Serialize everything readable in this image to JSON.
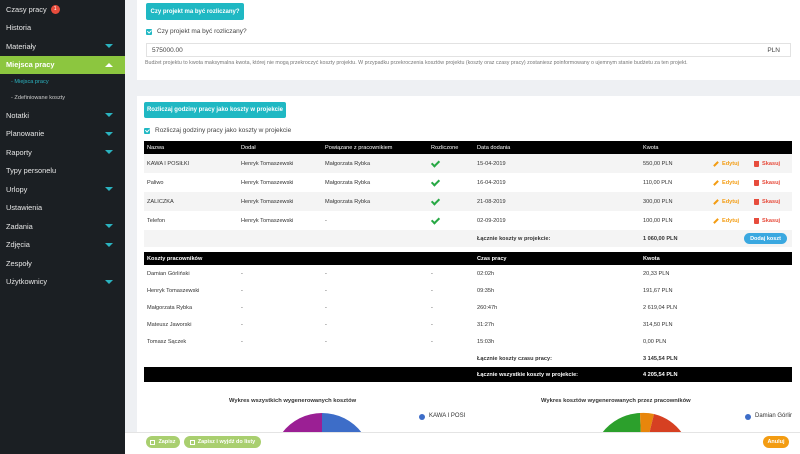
{
  "sidebar": {
    "items": [
      {
        "label": "Czasy pracy",
        "badge": "1"
      },
      {
        "label": "Historia"
      },
      {
        "label": "Materiały",
        "chevron": true
      },
      {
        "label": "Miejsca pracy",
        "active": true
      },
      {
        "label": "Notatki",
        "chevron": true
      },
      {
        "label": "Planowanie",
        "chevron": true
      },
      {
        "label": "Raporty",
        "chevron": true
      },
      {
        "label": "Typy personelu"
      },
      {
        "label": "Urlopy",
        "chevron": true
      },
      {
        "label": "Ustawienia"
      },
      {
        "label": "Zadania",
        "chevron": true
      },
      {
        "label": "Zdjęcia",
        "chevron": true
      },
      {
        "label": "Zespoły"
      },
      {
        "label": "Użytkownicy",
        "chevron": true
      }
    ],
    "sub_items": [
      {
        "label": "- Miejsca pracy",
        "active": true
      },
      {
        "label": "- Zdefiniowane koszty"
      }
    ]
  },
  "budget": {
    "button_label": "Czy projekt ma być rozliczany?",
    "checkbox_label": "Czy projekt ma być rozliczany?",
    "value": "575000.00",
    "currency": "PLN",
    "hint": "Budżet projektu to kwota maksymalna kwota, której nie mogą przekroczyć koszty projektu. W przypadku przekroczenia kosztów projektu (koszty oraz czasy pracy) zostaniesz poinformowany o ujemnym stanie budżetu za ten projekt."
  },
  "costs": {
    "button_label": "Rozliczaj godziny pracy jako koszty w projekcie",
    "checkbox_label": "Rozliczaj godziny pracy jako koszty w projekcie",
    "headers": {
      "name": "Nazwa",
      "added_by": "Dodał",
      "linked": "Powiązane z pracownikiem",
      "settled": "Rozliczone",
      "date": "Data dodania",
      "amount": "Kwota"
    },
    "rows": [
      {
        "name": "KAWA I POSIŁKI",
        "added_by": "Henryk Tomaszewski",
        "linked": "Małgorzata Rybka",
        "settled": true,
        "date": "15-04-2019",
        "amount": "550,00 PLN"
      },
      {
        "name": "Paliwo",
        "added_by": "Henryk Tomaszewski",
        "linked": "Małgorzata Rybka",
        "settled": true,
        "date": "16-04-2019",
        "amount": "110,00 PLN"
      },
      {
        "name": "ZALICZKA",
        "added_by": "Henryk Tomaszewski",
        "linked": "Małgorzata Rybka",
        "settled": true,
        "date": "21-08-2019",
        "amount": "300,00 PLN"
      },
      {
        "name": "Telefon",
        "added_by": "Henryk Tomaszewski",
        "linked": "-",
        "settled": true,
        "date": "02-09-2019",
        "amount": "100,00 PLN"
      }
    ],
    "edit_label": "Edytuj",
    "delete_label": "Skasuj",
    "total_label": "Łącznie koszty w projekcie:",
    "total_value": "1 060,00 PLN",
    "add_button": "Dodaj koszt"
  },
  "workers": {
    "headers": {
      "name": "Koszty pracowników",
      "time": "Czas pracy",
      "amount": "Kwota"
    },
    "dash": "-",
    "rows": [
      {
        "name": "Damian Górliński",
        "time": "02:02h",
        "amount": "20,33 PLN"
      },
      {
        "name": "Henryk Tomaszewski",
        "time": "09:35h",
        "amount": "191,67 PLN"
      },
      {
        "name": "Małgorzata Rybka",
        "time": "260:47h",
        "amount": "2 619,04 PLN"
      },
      {
        "name": "Mateusz Jaworski",
        "time": "31:27h",
        "amount": "314,50 PLN"
      },
      {
        "name": "Tomasz Sączek",
        "time": "15:03h",
        "amount": "0,00 PLN"
      }
    ],
    "time_total_label": "Łącznie koszty czasu pracy:",
    "time_total_value": "3 145,54 PLN",
    "all_total_label": "Łącznie wszystkie koszty w projekcie:",
    "all_total_value": "4 205,54 PLN"
  },
  "charts": {
    "left_title": "Wykres wszystkich wygenerowanych kosztów",
    "left_legend": "KAWA I POSI",
    "right_title": "Wykres kosztów wygenerowanych przez pracowników",
    "right_legend": "Damian Górlir"
  },
  "footer": {
    "save": "Zapisz",
    "save_exit": "Zapisz i wyjdź do listy",
    "cancel": "Anuluj"
  },
  "colors": {
    "teal": "#1fb8c3",
    "green": "#8cc63f",
    "check": "#27a844",
    "edit": "#f39c12",
    "delete": "#e74c3c",
    "legend": "#3d6dc8"
  }
}
